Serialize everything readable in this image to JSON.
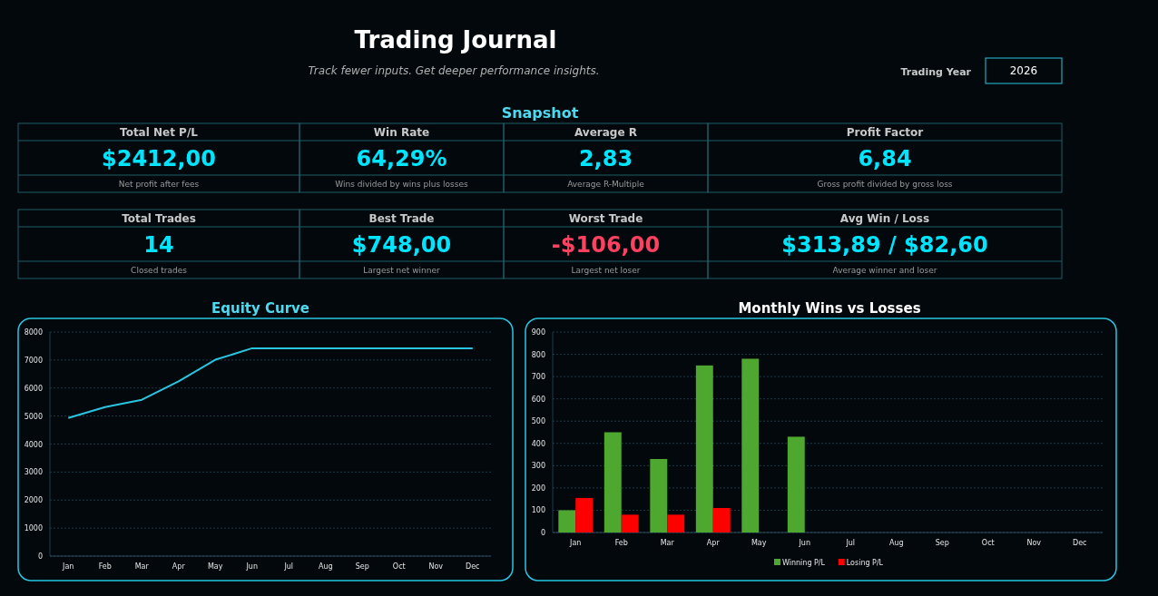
{
  "chart_data": [
    {
      "type": "other",
      "title": "Trading Journal",
      "subtitle": "Track fewer inputs. Get deeper performance insights.",
      "annotations": [
        "Trading Year",
        "2026",
        "Snapshot",
        "Total Net P/L",
        "$2412,00",
        "Net profit after fees",
        "Win Rate",
        "64,29%",
        "Wins divided by wins plus losses",
        "Average R",
        "2,83",
        "Average R-Multiple",
        "Profit Factor",
        "6,84",
        "Gross profit divided by gross loss",
        "Total Trades",
        "14",
        "Closed trades",
        "Best Trade",
        "$748,00",
        "Largest net winner",
        "Worst Trade",
        "-$106,00",
        "Largest net loser",
        "Avg Win / Loss",
        "$313,89 / $82,60",
        "Average winner and loser"
      ],
      "colors": [
        "#00e5ff",
        "#00e5ff",
        "#00e5ff",
        "#00e5ff",
        "#00e5ff",
        "#00e5ff",
        "#ff4060",
        "#00e5ff"
      ]
    },
    {
      "type": "line",
      "title": "Equity Curve",
      "categories": [
        "Jan",
        "Feb",
        "Mar",
        "Apr",
        "May",
        "Jun",
        "Jul",
        "Aug",
        "Sep",
        "Oct",
        "Nov",
        "Dec"
      ],
      "series": [
        {
          "color": "#29c5e0",
          "values": [
            4930,
            5320,
            5580,
            6240,
            7010,
            7420,
            7420,
            7420,
            7420,
            7420,
            7420,
            7420
          ]
        }
      ],
      "ylim": [
        0,
        8000
      ],
      "yticks": [
        0,
        1000,
        2000,
        3000,
        4000,
        5000,
        6000,
        7000,
        8000
      ],
      "grid": "y"
    },
    {
      "type": "bar",
      "title": "Monthly Wins vs Losses",
      "categories": [
        "Jan",
        "Feb",
        "Mar",
        "Apr",
        "May",
        "Jun",
        "Jul",
        "Aug",
        "Sep",
        "Oct",
        "Nov",
        "Dec"
      ],
      "series": [
        {
          "name": "Winning P/L",
          "color": "#4ea72e",
          "values": [
            100,
            450,
            330,
            750,
            780,
            430,
            null,
            null,
            null,
            null,
            null,
            null
          ]
        },
        {
          "name": "Losing P/L",
          "color": "#ff0000",
          "values": [
            155,
            80,
            80,
            110,
            null,
            null,
            null,
            null,
            null,
            null,
            null,
            null
          ]
        }
      ],
      "ylim": [
        0,
        900
      ],
      "yticks": [
        0,
        100,
        200,
        300,
        400,
        500,
        600,
        700,
        800,
        900
      ],
      "grid": "y",
      "legend": "bottom"
    }
  ]
}
